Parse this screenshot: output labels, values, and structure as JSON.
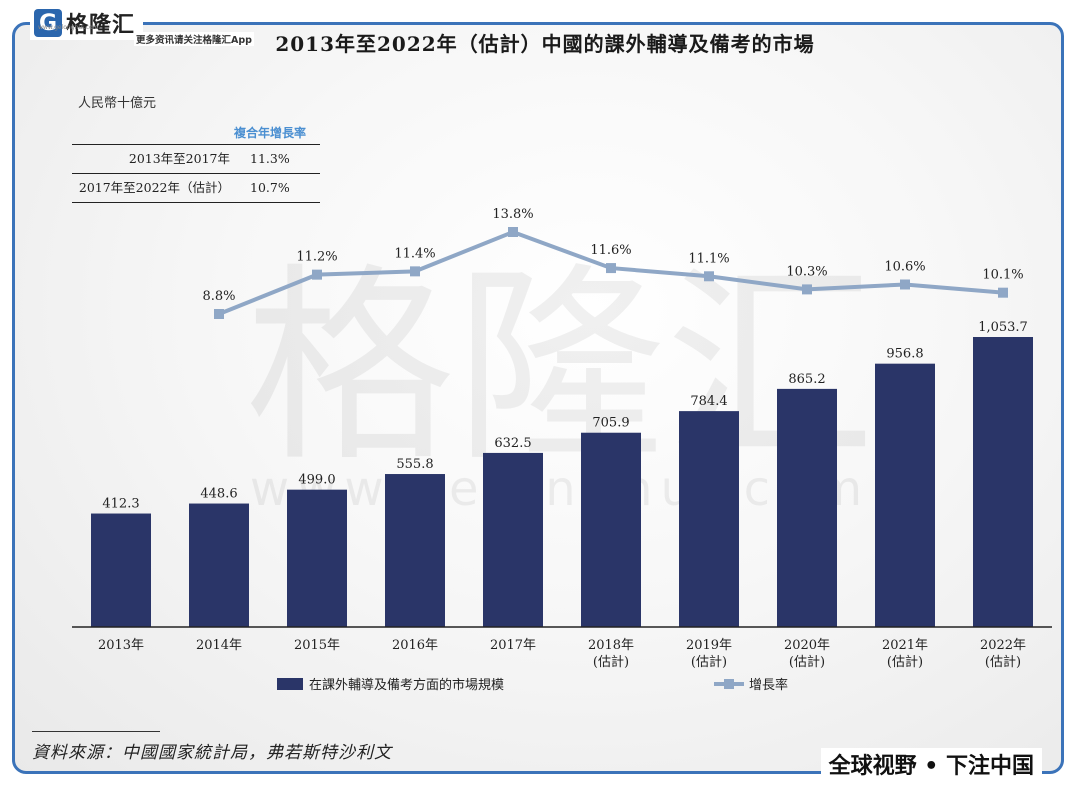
{
  "brand": {
    "logo_letter": "G",
    "logo_name": "格隆汇",
    "site": "www.gelonghui.com",
    "tagline": "更多资讯请关注格隆汇App",
    "watermark_text": "格隆汇",
    "watermark_url": "www.gelonghui.com"
  },
  "title": "2013年至2022年（估計）中國的課外輔導及備考的市場",
  "unit": "人民幣十億元",
  "cagr_table": {
    "header": "複合年增長率",
    "rows": [
      {
        "period": "2013年至2017年",
        "rate": "11.3%"
      },
      {
        "period": "2017年至2022年（估計）",
        "rate": "10.7%"
      }
    ]
  },
  "chart_data": {
    "type": "bar",
    "categories": [
      [
        "2013年"
      ],
      [
        "2014年"
      ],
      [
        "2015年"
      ],
      [
        "2016年"
      ],
      [
        "2017年"
      ],
      [
        "2018年",
        "(估計)"
      ],
      [
        "2019年",
        "(估計)"
      ],
      [
        "2020年",
        "(估計)"
      ],
      [
        "2021年",
        "(估計)"
      ],
      [
        "2022年",
        "(估計)"
      ]
    ],
    "series": [
      {
        "name": "在課外輔導及備考方面的市場規模",
        "kind": "bar",
        "color": "#2a3568",
        "values": [
          412.3,
          448.6,
          499.0,
          555.8,
          632.5,
          705.9,
          784.4,
          865.2,
          956.8,
          1053.7
        ],
        "labels": [
          "412.3",
          "448.6",
          "499.0",
          "555.8",
          "632.5",
          "705.9",
          "784.4",
          "865.2",
          "956.8",
          "1,053.7"
        ]
      },
      {
        "name": "增長率",
        "kind": "line",
        "color": "#8fa7c6",
        "values": [
          null,
          8.8,
          11.2,
          11.4,
          13.8,
          11.6,
          11.1,
          10.3,
          10.6,
          10.1
        ],
        "labels": [
          null,
          "8.8%",
          "11.2%",
          "11.4%",
          "13.8%",
          "11.6%",
          "11.1%",
          "10.3%",
          "10.6%",
          "10.1%"
        ]
      }
    ],
    "legend_position": "bottom-center",
    "grid": false
  },
  "source": "資料來源：中國國家統計局，弗若斯特沙利文",
  "slogan": "全球视野 • 下注中国"
}
